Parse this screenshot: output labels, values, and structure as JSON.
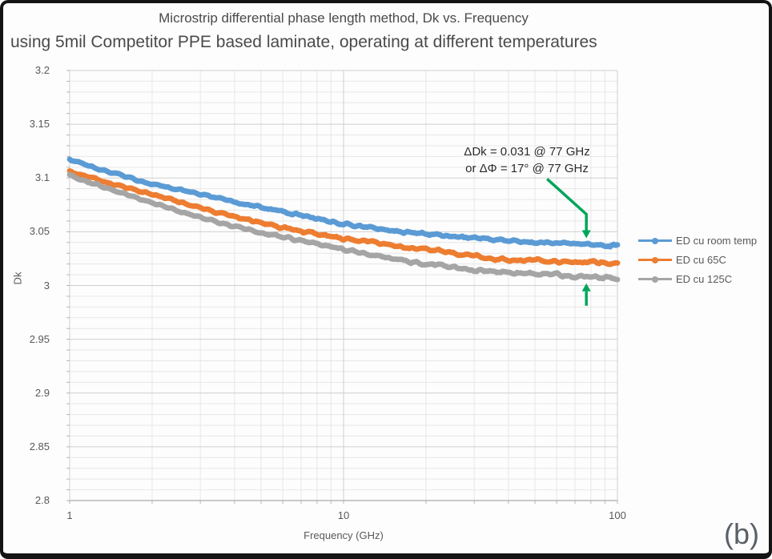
{
  "figure_label": "(b)",
  "chart_data": {
    "type": "line",
    "title": "Microstrip differential phase length method, Dk vs. Frequency",
    "subtitle": "using 5mil Competitor PPE based laminate, operating at different temperatures",
    "xlabel": "Frequency (GHz)",
    "ylabel": "Dk",
    "x_scale": "log",
    "xlim": [
      1,
      100
    ],
    "ylim": [
      2.8,
      3.2
    ],
    "grid": true,
    "legend_position": "right",
    "x_tick_values": [
      1,
      10,
      100
    ],
    "x_tick_labels": [
      "1",
      "10",
      "100"
    ],
    "y_tick_values": [
      3.2,
      3.15,
      3.1,
      3.05,
      3.0,
      2.95,
      2.9,
      2.85,
      2.8
    ],
    "y_tick_labels": [
      "3.2",
      "3.15",
      "3.1",
      "3.05",
      "3",
      "2.95",
      "2.9",
      "2.85",
      "2.8"
    ],
    "y_minor_step": 0.01,
    "x": [
      1,
      1.5,
      2,
      3,
      4,
      5,
      7,
      10,
      15,
      20,
      30,
      40,
      50,
      70,
      77,
      100
    ],
    "series": [
      {
        "name": "ED cu room temp",
        "color": "#5B9BD5",
        "values": [
          3.117,
          3.104,
          3.095,
          3.084,
          3.077,
          3.072,
          3.065,
          3.058,
          3.052,
          3.048,
          3.044,
          3.041,
          3.04,
          3.039,
          3.038,
          3.038
        ]
      },
      {
        "name": "ED cu 65C",
        "color": "#ED7D31",
        "values": [
          3.107,
          3.093,
          3.084,
          3.072,
          3.064,
          3.059,
          3.051,
          3.044,
          3.037,
          3.033,
          3.028,
          3.025,
          3.024,
          3.022,
          3.022,
          3.021
        ]
      },
      {
        "name": "ED cu 125C",
        "color": "#A5A5A5",
        "values": [
          3.102,
          3.087,
          3.077,
          3.064,
          3.055,
          3.049,
          3.041,
          3.033,
          3.025,
          3.021,
          3.015,
          3.012,
          3.01,
          3.008,
          3.008,
          3.006
        ]
      }
    ],
    "annotation": {
      "line1": "ΔDk = 0.031 @ 77 GHz",
      "line2": "or ΔΦ = 17° @ 77 GHz",
      "arrow_color": "#00A65A",
      "arrow_at_ghz": 77
    }
  }
}
